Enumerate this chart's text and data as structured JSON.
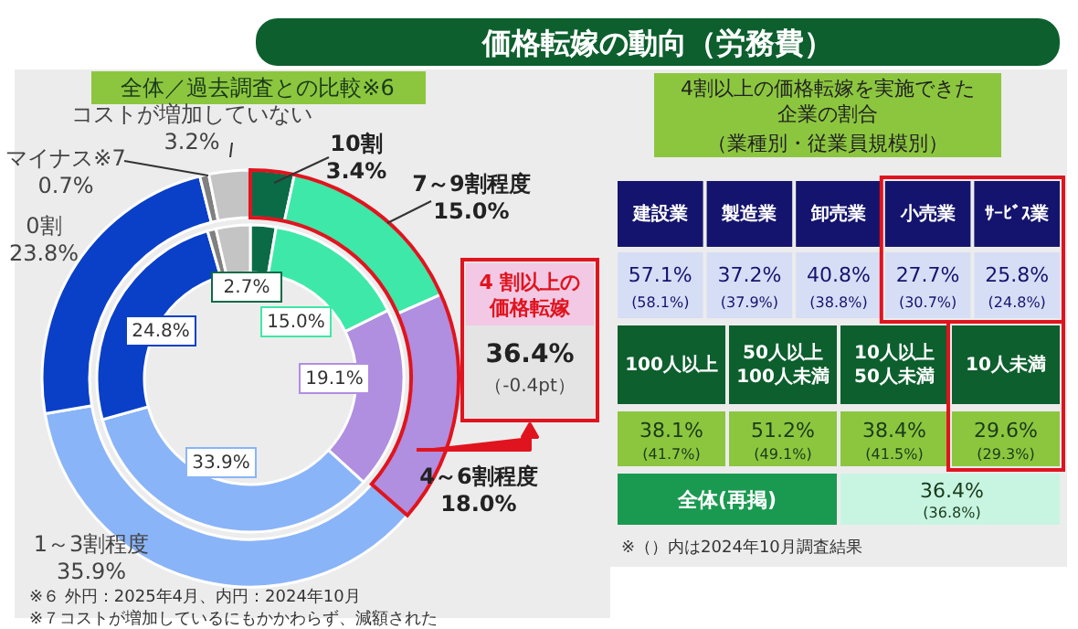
{
  "chart_data": [
    {
      "type": "donut",
      "title": "価格転嫁の動向（労務費）",
      "subtitle": "全体／過去調査との比較※6",
      "categories": [
        "10割",
        "7～9割程度",
        "4～6割程度",
        "1～3割程度",
        "0割",
        "マイナス※7",
        "コストが増加していない"
      ],
      "series": [
        {
          "values": [
            3.4,
            15.0,
            18.0,
            35.9,
            23.8,
            0.7,
            3.2
          ],
          "colors": [
            "#0b6b47",
            "#3ee8a8",
            "#b08ee0",
            "#8ab4f8",
            "#0a3fc8",
            "#808080",
            "#c4c4c4"
          ],
          "value_labels": [
            "3.4%",
            "15.0%",
            "18.0%",
            "35.9%",
            "23.8%",
            "0.7%",
            "3.2%"
          ]
        },
        {
          "values": [
            2.7,
            15.0,
            19.1,
            33.9,
            24.8,
            0.9,
            3.6
          ],
          "colors": [
            "#0b6b47",
            "#3ee8a8",
            "#b08ee0",
            "#8ab4f8",
            "#0a3fc8",
            "#808080",
            "#c4c4c4"
          ],
          "value_labels": [
            "2.7%",
            "15.0%",
            "19.1%",
            "33.9%",
            "24.8%",
            null,
            null
          ]
        }
      ],
      "annotations": [
        "4 割以上の価格転嫁",
        "36.4%",
        "（-0.4pt）",
        "※６ 外円：2025年4月、内円：2024年10月",
        "※７コストが増加しているにもかかわらず、減額された"
      ]
    },
    {
      "type": "other",
      "title": "4割以上の価格転嫁を実施できた企業の割合",
      "subtitle": "（業種別・従業員規模別）",
      "annotations": [
        "建設業",
        "製造業",
        "卸売業",
        "小売業",
        "ｻｰﾋﾞｽ業",
        "57.1%",
        "37.2%",
        "40.8%",
        "27.7%",
        "25.8%",
        "(58.1%)",
        "(37.9%)",
        "(38.8%)",
        "(30.7%)",
        "(24.8%)",
        "100人以上",
        "50人以上\n100人未満",
        "10人以上\n50人未満",
        "10人未満",
        "38.1%",
        "51.2%",
        "38.4%",
        "29.6%",
        "(41.7%)",
        "(49.1%)",
        "(41.5%)",
        "(29.3%)",
        "全体(再掲)",
        "36.4%",
        "(36.8%)",
        "※（）内は2024年10月調査結果"
      ]
    }
  ]
}
